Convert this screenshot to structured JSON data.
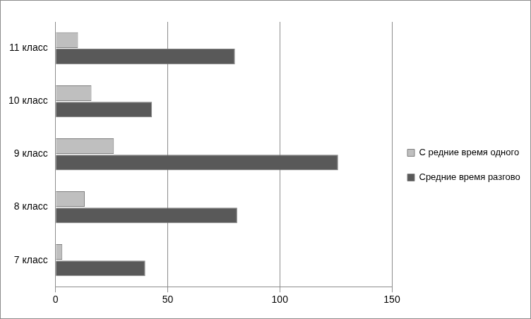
{
  "chart_data": {
    "type": "bar",
    "orientation": "horizontal",
    "categories": [
      "7 класс",
      "8 класс",
      "9 класс",
      "10 класс",
      "11 класс"
    ],
    "series": [
      {
        "name": "С редние время одного разговора, мин.",
        "color": "#bfbfbf",
        "values": [
          3,
          13,
          26,
          16,
          10
        ]
      },
      {
        "name": "Средние время разговора в сутки, мин.",
        "color": "#595959",
        "values": [
          40,
          81,
          126,
          43,
          80
        ]
      }
    ],
    "xlim": [
      0,
      150
    ],
    "xticks": [
      0,
      50,
      100,
      150
    ],
    "grid": true,
    "legend": "right"
  }
}
